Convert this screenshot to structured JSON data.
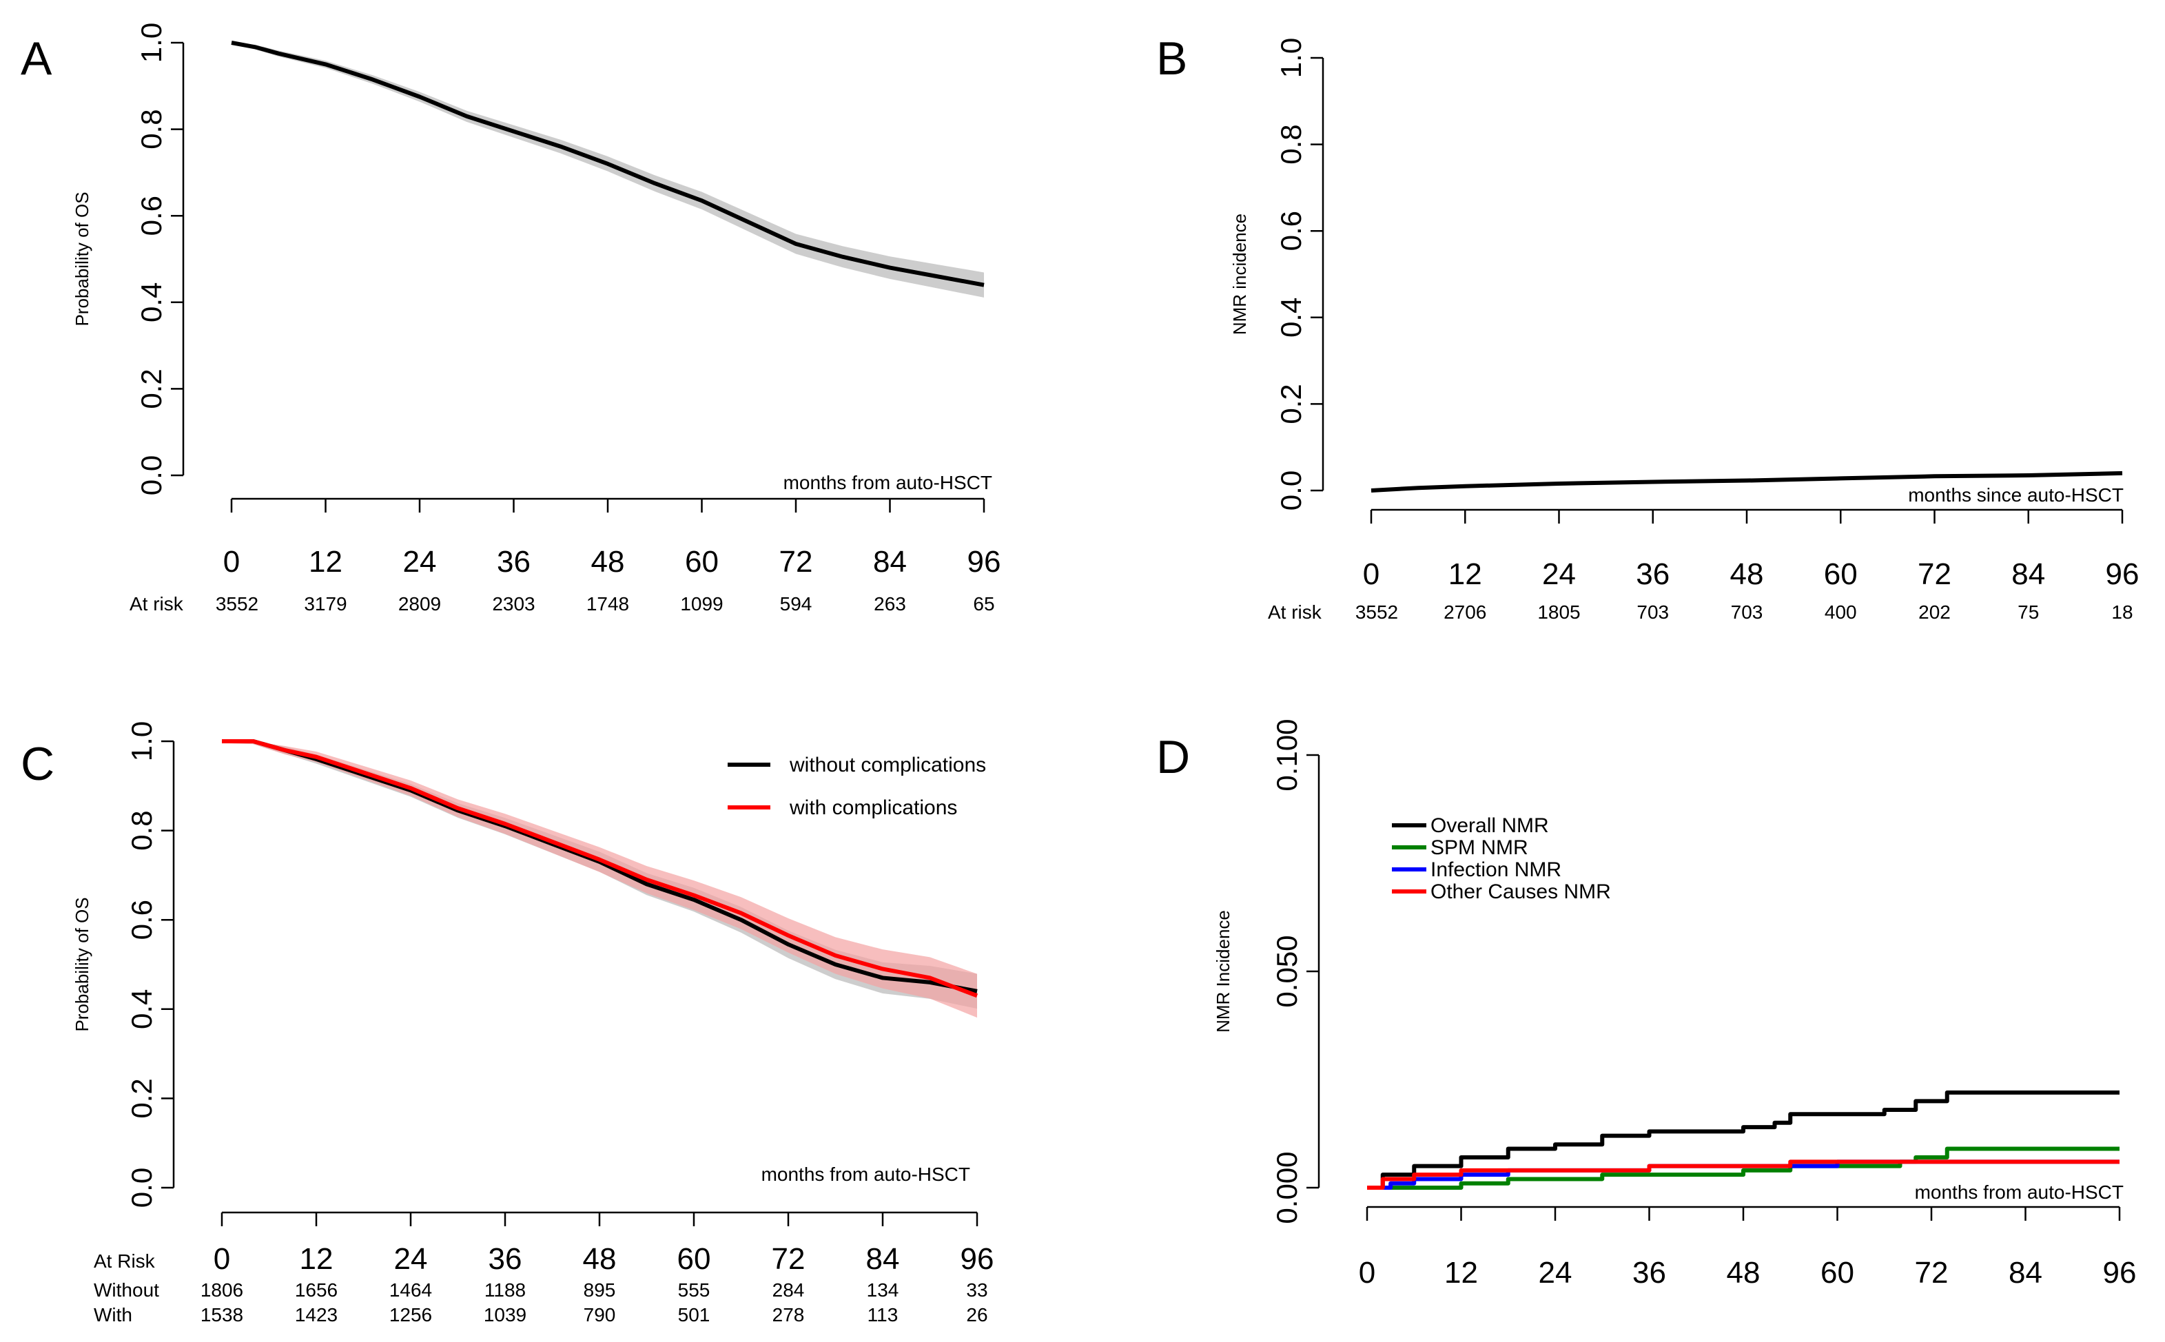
{
  "chart_data": [
    {
      "panel": "A",
      "type": "line",
      "ylabel": "Probability of OS",
      "xlabel": "months from auto-HSCT",
      "ylim": [
        0,
        1
      ],
      "yticks": [
        "0.0",
        "0.2",
        "0.4",
        "0.6",
        "0.8",
        "1.0"
      ],
      "xticks": [
        "0",
        "12",
        "24",
        "36",
        "48",
        "60",
        "72",
        "84",
        "96"
      ],
      "risk_label": "At risk",
      "risk_values": [
        "3552",
        "3179",
        "2809",
        "2303",
        "1748",
        "1099",
        "594",
        "263",
        "65"
      ],
      "series": [
        {
          "name": "Overall",
          "color": "#000000",
          "x": [
            0,
            3,
            6,
            12,
            18,
            24,
            30,
            36,
            42,
            48,
            54,
            60,
            66,
            72,
            78,
            84,
            90,
            96
          ],
          "y": [
            1.0,
            0.99,
            0.975,
            0.95,
            0.915,
            0.875,
            0.83,
            0.795,
            0.76,
            0.72,
            0.675,
            0.635,
            0.585,
            0.535,
            0.505,
            0.48,
            0.46,
            0.44
          ],
          "ci_width": 0.025
        }
      ]
    },
    {
      "panel": "B",
      "type": "line",
      "ylabel": "NMR incidence",
      "xlabel": "months since auto-HSCT",
      "ylim": [
        0,
        1
      ],
      "yticks": [
        "0.0",
        "0.2",
        "0.4",
        "0.6",
        "0.8",
        "1.0"
      ],
      "xticks": [
        "0",
        "12",
        "24",
        "36",
        "48",
        "60",
        "72",
        "84",
        "96"
      ],
      "risk_label": "At risk",
      "risk_values": [
        "3552",
        "2706",
        "1805",
        "703",
        "703",
        "400",
        "202",
        "75",
        "18"
      ],
      "series": [
        {
          "name": "NMR",
          "color": "#000000",
          "x": [
            0,
            6,
            12,
            24,
            36,
            48,
            60,
            72,
            84,
            96
          ],
          "y": [
            0.0,
            0.006,
            0.01,
            0.016,
            0.02,
            0.023,
            0.028,
            0.033,
            0.035,
            0.04
          ],
          "ci_width": 0
        }
      ]
    },
    {
      "panel": "C",
      "type": "line",
      "ylabel": "Probability of OS",
      "xlabel": "months from auto-HSCT",
      "ylim": [
        0,
        1
      ],
      "yticks": [
        "0.0",
        "0.2",
        "0.4",
        "0.6",
        "0.8",
        "1.0"
      ],
      "xticks": [
        "0",
        "12",
        "24",
        "36",
        "48",
        "60",
        "72",
        "84",
        "96"
      ],
      "risk_label": "At Risk",
      "risk_rows": [
        {
          "label": "Without",
          "values": [
            "1806",
            "1656",
            "1464",
            "1188",
            "895",
            "555",
            "284",
            "134",
            "33"
          ]
        },
        {
          "label": "With",
          "values": [
            "1538",
            "1423",
            "1256",
            "1039",
            "790",
            "501",
            "278",
            "113",
            "26"
          ]
        }
      ],
      "legend": [
        "without complications",
        "with complications"
      ],
      "series": [
        {
          "name": "without complications",
          "color": "#000000",
          "x": [
            0,
            4,
            8,
            12,
            18,
            24,
            30,
            36,
            42,
            48,
            54,
            60,
            66,
            72,
            78,
            84,
            90,
            96
          ],
          "y": [
            1.0,
            1.0,
            0.98,
            0.96,
            0.925,
            0.89,
            0.845,
            0.81,
            0.77,
            0.73,
            0.68,
            0.645,
            0.6,
            0.545,
            0.5,
            0.47,
            0.46,
            0.44
          ],
          "ci_width": 0.035
        },
        {
          "name": "with complications",
          "color": "#ff0000",
          "x": [
            0,
            4,
            8,
            12,
            18,
            24,
            30,
            36,
            42,
            48,
            54,
            60,
            66,
            72,
            78,
            84,
            90,
            96
          ],
          "y": [
            1.0,
            1.0,
            0.98,
            0.965,
            0.93,
            0.895,
            0.85,
            0.815,
            0.775,
            0.735,
            0.69,
            0.655,
            0.615,
            0.565,
            0.52,
            0.49,
            0.47,
            0.43
          ],
          "ci_width": 0.045
        }
      ]
    },
    {
      "panel": "D",
      "type": "line",
      "ylabel": "NMR Incidence",
      "xlabel": "months from auto-HSCT",
      "ylim": [
        0,
        0.1
      ],
      "yticks": [
        "0.000",
        "0.050",
        "0.100"
      ],
      "xticks": [
        "0",
        "12",
        "24",
        "36",
        "48",
        "60",
        "72",
        "84",
        "96"
      ],
      "legend": [
        "Overall NMR",
        "SPM NMR",
        "Infection NMR",
        "Other Causes NMR"
      ],
      "series": [
        {
          "name": "Overall NMR",
          "color": "#000000",
          "x": [
            0,
            2,
            6,
            12,
            18,
            24,
            30,
            36,
            42,
            48,
            52,
            54,
            60,
            66,
            68,
            70,
            72,
            74,
            84,
            96
          ],
          "y": [
            0.0,
            0.003,
            0.005,
            0.007,
            0.009,
            0.01,
            0.012,
            0.013,
            0.013,
            0.014,
            0.015,
            0.017,
            0.017,
            0.018,
            0.018,
            0.02,
            0.02,
            0.022,
            0.022,
            0.022
          ],
          "ci_width": 0
        },
        {
          "name": "SPM NMR",
          "color": "#008000",
          "x": [
            0,
            6,
            12,
            18,
            24,
            30,
            36,
            48,
            54,
            60,
            68,
            70,
            74,
            84,
            96
          ],
          "y": [
            0.0,
            0.0,
            0.001,
            0.002,
            0.002,
            0.003,
            0.003,
            0.004,
            0.005,
            0.005,
            0.006,
            0.007,
            0.009,
            0.009,
            0.009
          ],
          "ci_width": 0
        },
        {
          "name": "Infection NMR",
          "color": "#0000ff",
          "x": [
            0,
            3,
            6,
            12,
            18,
            24,
            36,
            48,
            60,
            72,
            84,
            96
          ],
          "y": [
            0.0,
            0.001,
            0.002,
            0.003,
            0.004,
            0.004,
            0.005,
            0.005,
            0.006,
            0.006,
            0.006,
            0.006
          ],
          "ci_width": 0
        },
        {
          "name": "Other Causes NMR",
          "color": "#ff0000",
          "x": [
            0,
            2,
            6,
            12,
            24,
            36,
            48,
            54,
            60,
            72,
            84,
            96
          ],
          "y": [
            0.0,
            0.002,
            0.003,
            0.004,
            0.004,
            0.005,
            0.005,
            0.006,
            0.006,
            0.006,
            0.006,
            0.006
          ],
          "ci_width": 0
        }
      ]
    }
  ]
}
